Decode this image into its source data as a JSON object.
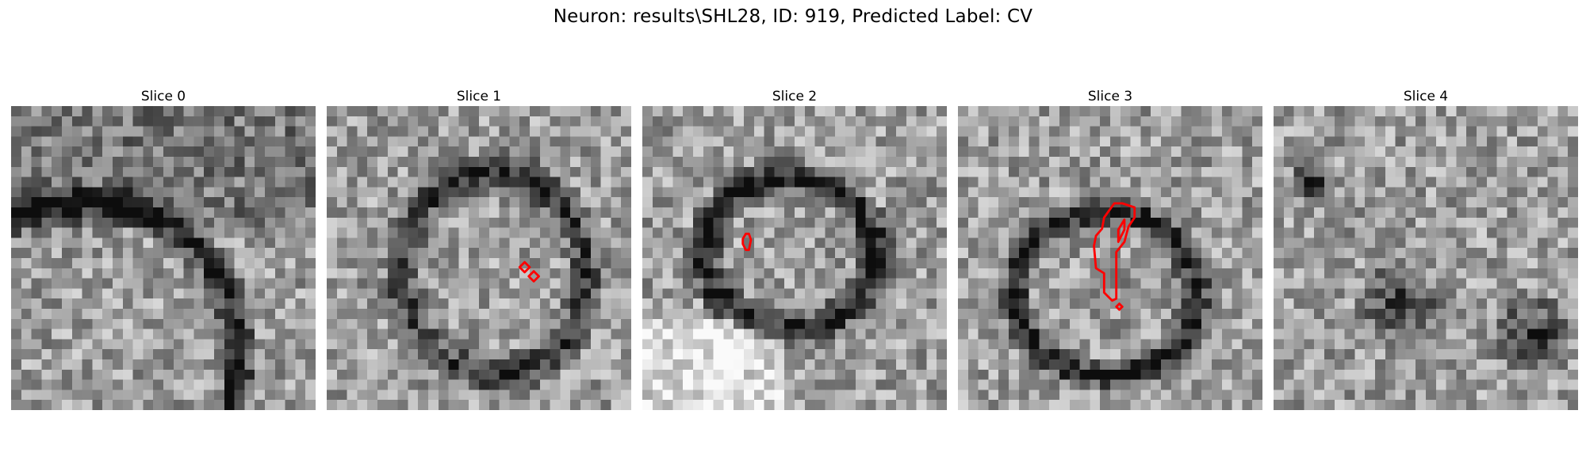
{
  "title": "Neuron: results\\SHL28, ID: 919, Predicted Label: CV",
  "grid_size": 30,
  "panels": [
    {
      "label": "Slice 0",
      "seed": 101,
      "contours": []
    },
    {
      "label": "Slice 1",
      "seed": 202,
      "contours": [
        "small-diamond-pair"
      ]
    },
    {
      "label": "Slice 2",
      "seed": 303,
      "contours": [
        "small-oval"
      ]
    },
    {
      "label": "Slice 3",
      "seed": 404,
      "contours": [
        "elongated-loop",
        "small-diamond"
      ]
    },
    {
      "label": "Slice 4",
      "seed": 505,
      "contours": []
    }
  ],
  "colors": {
    "contour": "#ff0000",
    "background": "#ffffff",
    "text": "#000000"
  }
}
